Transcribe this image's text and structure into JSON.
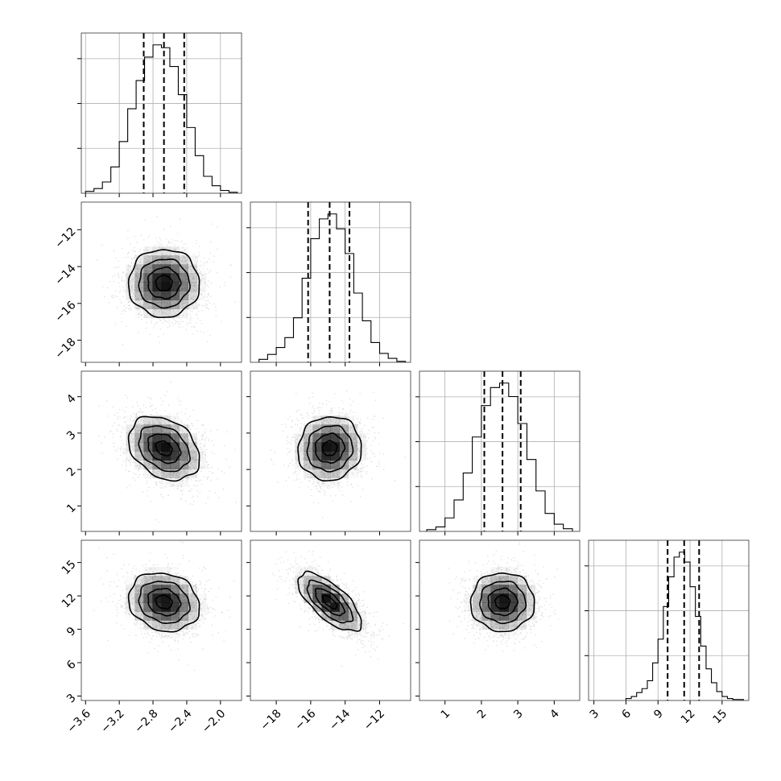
{
  "chart_data": {
    "type": "corner",
    "parameters": [
      {
        "range": [
          -3.65,
          -1.75
        ],
        "ticks": [
          -3.6,
          -3.2,
          -2.8,
          -2.4,
          -2.0
        ],
        "tick_labels": [
          "−3.6",
          "−3.2",
          "−2.8",
          "−2.4",
          "−2.0"
        ],
        "quantiles": [
          -2.91,
          -2.67,
          -2.43
        ],
        "histogram": {
          "bin_edges": [
            -3.6,
            -3.5,
            -3.4,
            -3.3,
            -3.2,
            -3.1,
            -3.0,
            -2.9,
            -2.8,
            -2.7,
            -2.6,
            -2.5,
            -2.4,
            -2.3,
            -2.2,
            -2.1,
            -2.0,
            -1.9,
            -1.8
          ],
          "counts": [
            2,
            5,
            12,
            28,
            55,
            90,
            120,
            145,
            158,
            155,
            135,
            105,
            70,
            40,
            18,
            8,
            3,
            1
          ]
        }
      },
      {
        "range": [
          -19.5,
          -10.2
        ],
        "ticks": [
          -18,
          -16,
          -14,
          -12
        ],
        "tick_labels": [
          "−18",
          "−16",
          "−14",
          "−12"
        ],
        "quantiles": [
          -16.15,
          -14.9,
          -13.75
        ],
        "histogram": {
          "bin_edges": [
            -19.0,
            -18.5,
            -18.0,
            -17.5,
            -17.0,
            -16.5,
            -16.0,
            -15.5,
            -15.0,
            -14.5,
            -14.0,
            -13.5,
            -13.0,
            -12.5,
            -12.0,
            -11.5,
            -11.0,
            -10.5
          ],
          "counts": [
            3,
            8,
            15,
            25,
            45,
            85,
            125,
            145,
            150,
            135,
            110,
            70,
            42,
            20,
            9,
            4,
            1
          ]
        }
      },
      {
        "range": [
          0.3,
          4.7
        ],
        "ticks": [
          1,
          2,
          3,
          4
        ],
        "tick_labels": [
          "1",
          "2",
          "3",
          "4"
        ],
        "quantiles": [
          2.08,
          2.58,
          3.08
        ],
        "histogram": {
          "bin_edges": [
            0.5,
            0.75,
            1.0,
            1.25,
            1.5,
            1.75,
            2.0,
            2.25,
            2.5,
            2.75,
            3.0,
            3.25,
            3.5,
            3.75,
            4.0,
            4.25,
            4.5
          ],
          "counts": [
            2,
            5,
            15,
            35,
            65,
            105,
            140,
            160,
            165,
            150,
            120,
            80,
            45,
            20,
            8,
            3
          ]
        }
      },
      {
        "range": [
          2.5,
          17.5
        ],
        "ticks": [
          3,
          6,
          9,
          12,
          15
        ],
        "tick_labels": [
          "3",
          "6",
          "9",
          "12",
          "15"
        ],
        "quantiles": [
          9.9,
          11.45,
          12.85
        ],
        "histogram": {
          "bin_edges": [
            6.0,
            6.5,
            7.0,
            7.5,
            8.0,
            8.5,
            9.0,
            9.5,
            10.0,
            10.5,
            11.0,
            11.5,
            12.0,
            12.5,
            13.0,
            13.5,
            14.0,
            14.5,
            15.0,
            15.5,
            16.0,
            16.5,
            17.0
          ],
          "counts": [
            2,
            4,
            8,
            12,
            20,
            38,
            62,
            95,
            125,
            145,
            150,
            140,
            115,
            85,
            55,
            32,
            18,
            9,
            4,
            2,
            1,
            1
          ]
        }
      }
    ],
    "joint_ranges": {
      "row1_y": [
        -19.2,
        -10.5
      ],
      "row2_y": [
        0.3,
        4.7
      ],
      "row3_y": [
        2.6,
        17.0
      ]
    },
    "joint_ticks": {
      "row1_y": [
        -18,
        -16,
        -14,
        -12
      ],
      "row1_y_labels": [
        "−18",
        "−16",
        "−14",
        "−12"
      ],
      "row2_y": [
        1,
        2,
        3,
        4
      ],
      "row2_y_labels": [
        "1",
        "2",
        "3",
        "4"
      ],
      "row3_y": [
        3,
        6,
        9,
        12,
        15
      ],
      "row3_y_labels": [
        "3",
        "6",
        "9",
        "12",
        "15"
      ]
    },
    "joint_distributions": {
      "1-0": {
        "mean": [
          -2.67,
          -14.9
        ],
        "sd": [
          0.24,
          1.05
        ],
        "rho": 0.0
      },
      "2-0": {
        "mean": [
          -2.67,
          2.58
        ],
        "sd": [
          0.24,
          0.5
        ],
        "rho": -0.3
      },
      "2-1": {
        "mean": [
          -14.9,
          2.58
        ],
        "sd": [
          1.05,
          0.5
        ],
        "rho": 0.05
      },
      "3-0": {
        "mean": [
          -2.67,
          11.45
        ],
        "sd": [
          0.24,
          1.5
        ],
        "rho": -0.15
      },
      "3-1": {
        "mean": [
          -14.9,
          11.45
        ],
        "sd": [
          1.05,
          1.5
        ],
        "rho": -0.7
      },
      "3-2": {
        "mean": [
          2.58,
          11.45
        ],
        "sd": [
          0.5,
          1.5
        ],
        "rho": 0.0
      }
    },
    "grid": true,
    "colors": {
      "contour": "#000000",
      "density": "#000000",
      "scatter": "#000000",
      "grid": "#b0b0b0"
    }
  }
}
